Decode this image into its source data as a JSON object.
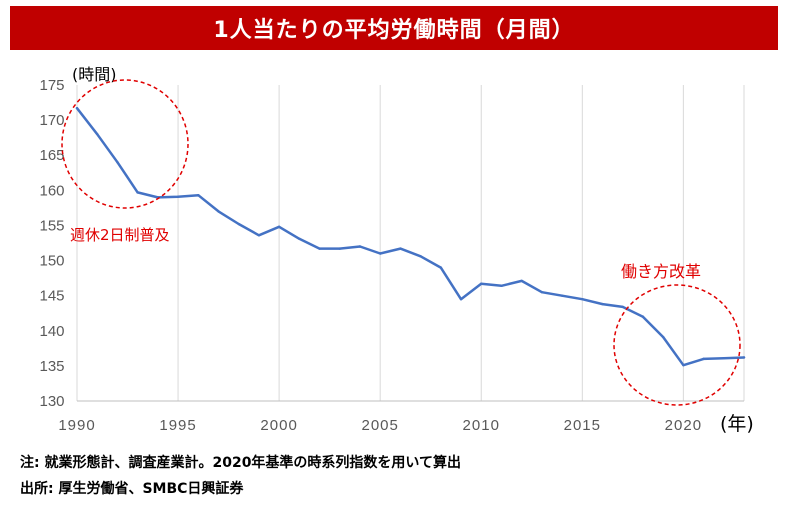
{
  "title": "1人当たりの平均労働時間（月間）",
  "notes": {
    "line1": "注: 就業形態計、調査産業計。2020年基準の時系列指数を用いて算出",
    "line2": "出所: 厚生労働省、SMBC日興証券"
  },
  "colors": {
    "title_bg": "#c00000",
    "line": "#4472c4",
    "annotation": "#e00000",
    "grid": "#d9d9d9"
  },
  "chart_data": {
    "type": "line",
    "title": "1人当たりの平均労働時間（月間）",
    "ylabel": "(時間)",
    "xlabel": "(年)",
    "ylim": [
      130,
      175
    ],
    "yticks": [
      130,
      135,
      140,
      145,
      150,
      155,
      160,
      165,
      170,
      175
    ],
    "xlim": [
      1990,
      2023
    ],
    "xticks": [
      1990,
      1995,
      2000,
      2005,
      2010,
      2015,
      2020
    ],
    "grid": "vertical",
    "x": [
      1990,
      1991,
      1992,
      1993,
      1994,
      1995,
      1996,
      1997,
      1998,
      1999,
      2000,
      2001,
      2002,
      2003,
      2004,
      2005,
      2006,
      2007,
      2008,
      2009,
      2010,
      2011,
      2012,
      2013,
      2014,
      2015,
      2016,
      2017,
      2018,
      2019,
      2020,
      2021,
      2022,
      2023
    ],
    "series": [
      {
        "values": [
          171.7,
          168.0,
          164.0,
          159.7,
          159.0,
          159.1,
          159.3,
          157.0,
          155.2,
          153.6,
          154.8,
          153.1,
          151.7,
          151.7,
          152.0,
          151.0,
          151.7,
          150.6,
          149.0,
          144.5,
          146.7,
          146.4,
          147.1,
          145.5,
          145.0,
          144.5,
          143.8,
          143.4,
          142.0,
          139.1,
          135.1,
          136.0,
          136.1,
          136.2
        ]
      }
    ],
    "annotations": [
      {
        "text": "週休2日制普及",
        "x": 1991.0,
        "y": 166.5
      },
      {
        "text": "働き方改革",
        "x": 2020.2,
        "y": 138.0
      }
    ]
  }
}
